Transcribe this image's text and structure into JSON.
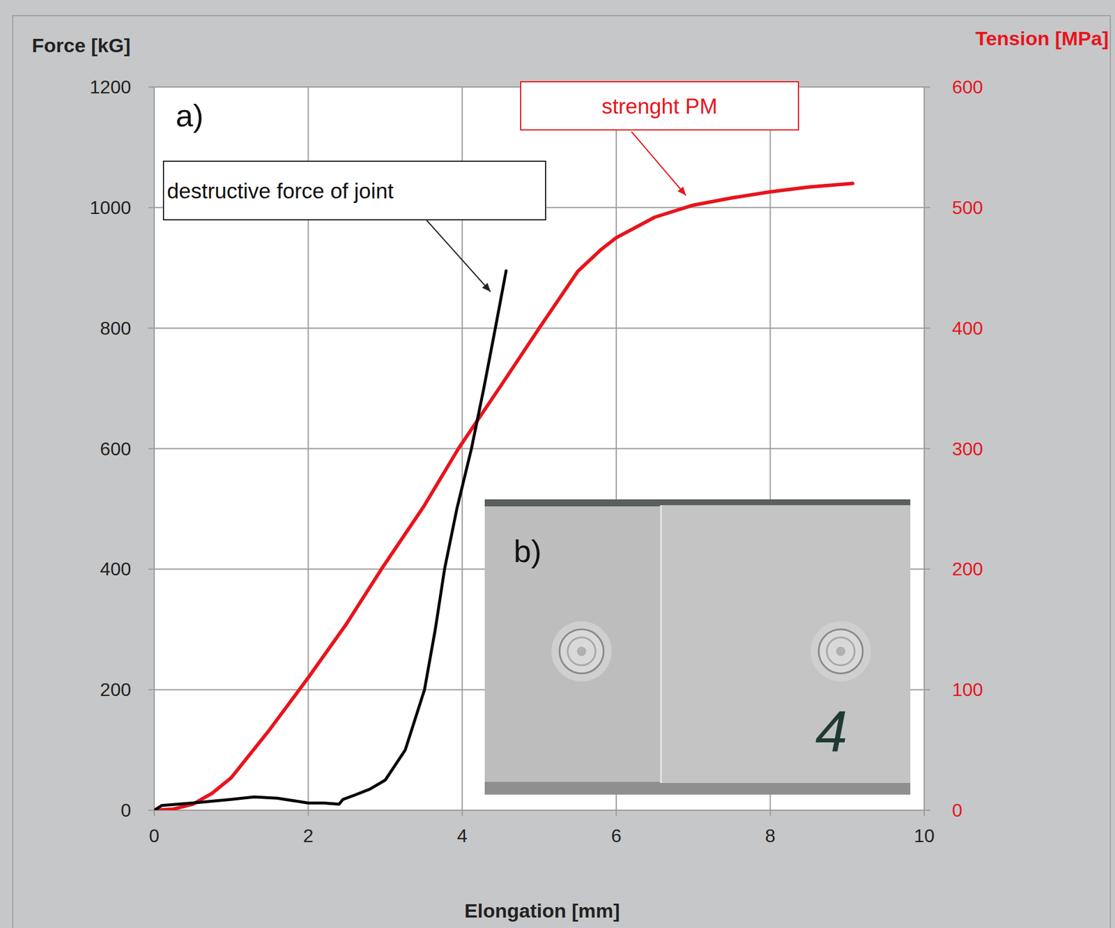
{
  "chart_data": {
    "type": "line",
    "panel_labels": [
      "a)",
      "b)"
    ],
    "inset_text": "4",
    "x_label": "Elongation [mm]",
    "y_label": "Force [kG]",
    "y2_label": "Tension [MPa]",
    "xlim": [
      0,
      10
    ],
    "xticks": [
      0,
      2,
      4,
      6,
      8,
      10
    ],
    "ylim": [
      0,
      1200
    ],
    "yticks": [
      0,
      200,
      400,
      600,
      800,
      1000,
      1200
    ],
    "y2lim": [
      0,
      600
    ],
    "y2ticks": [
      0,
      100,
      200,
      300,
      400,
      500,
      600
    ],
    "grid": true,
    "series": [
      {
        "name": "destructive force of joint",
        "color": "#000000",
        "x": [
          0,
          0.1,
          0.5,
          1,
          1.3,
          1.6,
          2,
          2.2,
          2.4,
          2.45,
          2.6,
          2.8,
          3,
          3.26,
          3.51,
          3.65,
          3.77,
          3.93,
          4.12,
          4.28,
          4.43,
          4.57
        ],
        "values": [
          0,
          8,
          12,
          18,
          22,
          20,
          12,
          12,
          10,
          18,
          25,
          35,
          50,
          100,
          200,
          300,
          400,
          500,
          600,
          700,
          800,
          895
        ]
      },
      {
        "name": "strenght PM",
        "color": "#e8141c",
        "axis": "y2",
        "x": [
          0,
          0.25,
          0.5,
          0.75,
          1,
          1.5,
          2,
          2.5,
          2.95,
          3.5,
          3.95,
          4.5,
          5,
          5.5,
          5.8,
          6,
          6.5,
          7,
          7.5,
          8,
          8.5,
          9.07
        ],
        "values": [
          0,
          1,
          5,
          14,
          27,
          67,
          110,
          155,
          200,
          252,
          300,
          352,
          400,
          447,
          465,
          475,
          492,
          502,
          508,
          513,
          517,
          520
        ]
      }
    ]
  }
}
